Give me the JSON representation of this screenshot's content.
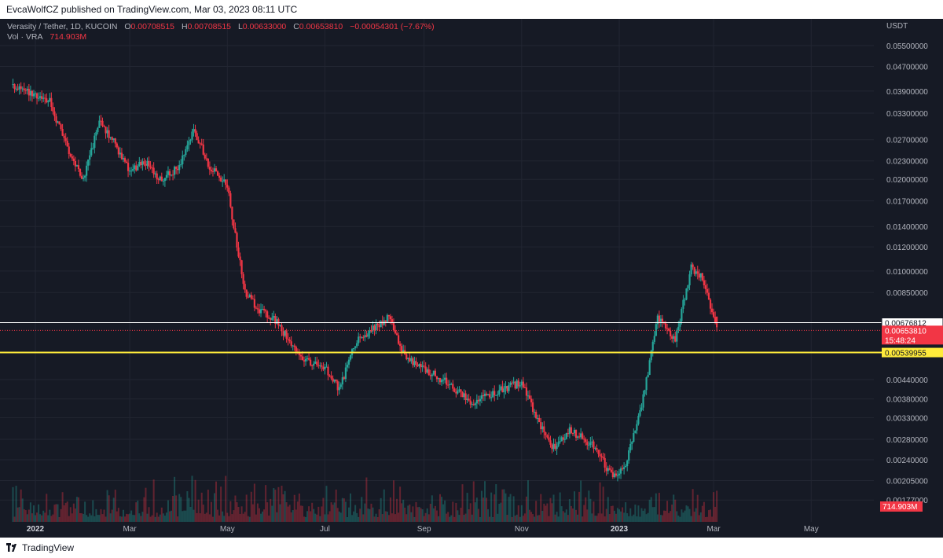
{
  "header": {
    "published": "EvcaWolfCZ published on TradingView.com, Mar 03, 2023 08:11 UTC"
  },
  "legend": {
    "symbol": "Verasity / Tether, 1D, KUCOIN",
    "o_label": "O",
    "o": "0.00708515",
    "h_label": "H",
    "h": "0.00708515",
    "l_label": "L",
    "l": "0.00633000",
    "c_label": "C",
    "c": "0.00653810",
    "change": "−0.00054301 (−7.67%)",
    "vol_label": "Vol · VRA",
    "vol": "714.903M"
  },
  "footer": {
    "brand": "TradingView"
  },
  "colors": {
    "background": "#161a25",
    "up": "#26a69a",
    "down": "#f23645",
    "support": "#ffeb3b",
    "text": "#b2b5be"
  },
  "chart_data": {
    "type": "candlestick",
    "title": "Verasity / Tether, 1D, KUCOIN",
    "y_unit": "USDT",
    "y_scale": "log",
    "y_ticks": [
      "0.05500000",
      "0.04700000",
      "0.03900000",
      "0.03300000",
      "0.02700000",
      "0.02300000",
      "0.02000000",
      "0.01700000",
      "0.01400000",
      "0.01200000",
      "0.01000000",
      "0.00850000",
      "0.00440000",
      "0.00380000",
      "0.00330000",
      "0.00280000",
      "0.00240000",
      "0.00205000",
      "0.00177000"
    ],
    "x_ticks": [
      "2022",
      "Mar",
      "May",
      "Jul",
      "Sep",
      "Nov",
      "2023",
      "Mar",
      "May"
    ],
    "close_path": [
      [
        "2021-12-18",
        0.041
      ],
      [
        "2022-01-01",
        0.038
      ],
      [
        "2022-01-10",
        0.036
      ],
      [
        "2022-01-20",
        0.026
      ],
      [
        "2022-01-31",
        0.02
      ],
      [
        "2022-02-10",
        0.031
      ],
      [
        "2022-02-20",
        0.026
      ],
      [
        "2022-03-01",
        0.021
      ],
      [
        "2022-03-10",
        0.023
      ],
      [
        "2022-03-20",
        0.02
      ],
      [
        "2022-04-01",
        0.022
      ],
      [
        "2022-04-10",
        0.029
      ],
      [
        "2022-04-20",
        0.022
      ],
      [
        "2022-05-01",
        0.019
      ],
      [
        "2022-05-05",
        0.014
      ],
      [
        "2022-05-12",
        0.0085
      ],
      [
        "2022-05-20",
        0.0075
      ],
      [
        "2022-06-01",
        0.0068
      ],
      [
        "2022-06-15",
        0.0052
      ],
      [
        "2022-07-01",
        0.0048
      ],
      [
        "2022-07-10",
        0.0041
      ],
      [
        "2022-07-20",
        0.0058
      ],
      [
        "2022-08-01",
        0.0065
      ],
      [
        "2022-08-10",
        0.0071
      ],
      [
        "2022-08-20",
        0.0052
      ],
      [
        "2022-09-01",
        0.0048
      ],
      [
        "2022-09-15",
        0.0043
      ],
      [
        "2022-10-01",
        0.0037
      ],
      [
        "2022-10-15",
        0.004
      ],
      [
        "2022-11-01",
        0.0043
      ],
      [
        "2022-11-10",
        0.0033
      ],
      [
        "2022-11-20",
        0.0026
      ],
      [
        "2022-12-01",
        0.003
      ],
      [
        "2022-12-15",
        0.0027
      ],
      [
        "2022-12-28",
        0.0021
      ],
      [
        "2023-01-05",
        0.0023
      ],
      [
        "2023-01-15",
        0.0036
      ],
      [
        "2023-01-25",
        0.007
      ],
      [
        "2023-02-05",
        0.006
      ],
      [
        "2023-02-15",
        0.0102
      ],
      [
        "2023-02-22",
        0.0095
      ],
      [
        "2023-03-03",
        0.0065
      ]
    ],
    "last": {
      "open": 0.00708515,
      "high": 0.00708515,
      "low": 0.00633,
      "close": 0.0065381
    },
    "volume_last": "714.903M",
    "price_lines": [
      {
        "price": "0.00676812",
        "style": "white"
      },
      {
        "price": "0.00653810",
        "style": "red",
        "countdown": "15:48:24"
      },
      {
        "price": "0.00539955",
        "style": "yellow"
      }
    ]
  }
}
